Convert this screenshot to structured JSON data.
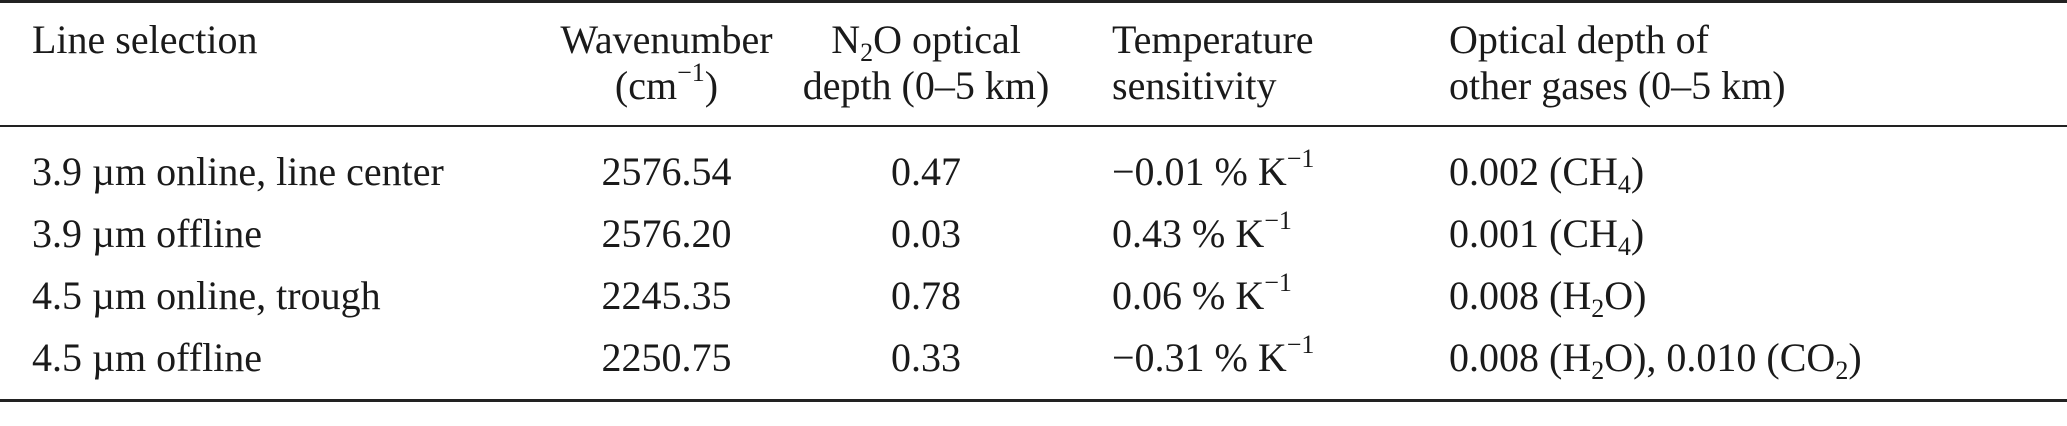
{
  "table": {
    "headers": {
      "line_selection": "Line selection",
      "wavenumber_l1": "Wavenumber",
      "wavenumber_l2_pre": "(cm",
      "wavenumber_l2_sup": "−1",
      "wavenumber_l2_post": ")",
      "n2o_l1_pre": "N",
      "n2o_l1_sub": "2",
      "n2o_l1_post": "O optical",
      "n2o_l2": "depth (0–5 km)",
      "temp_l1": "Temperature",
      "temp_l2": "sensitivity",
      "other_l1": "Optical depth of",
      "other_l2": "other gases (0–5 km)"
    },
    "rows": [
      {
        "line": "3.9 µm online, line center",
        "wavenumber": "2576.54",
        "n2o_depth": "0.47",
        "temp_pre": "−0.01 % K",
        "temp_sup": "−1",
        "other_pre": "0.002 (CH",
        "other_sub": "4",
        "other_post": ")"
      },
      {
        "line": "3.9 µm offline",
        "wavenumber": "2576.20",
        "n2o_depth": "0.03",
        "temp_pre": "0.43 % K",
        "temp_sup": "−1",
        "other_pre": "0.001 (CH",
        "other_sub": "4",
        "other_post": ")"
      },
      {
        "line": "4.5 µm online, trough",
        "wavenumber": "2245.35",
        "n2o_depth": "0.78",
        "temp_pre": "0.06 % K",
        "temp_sup": "−1",
        "other_pre": "0.008 (H",
        "other_sub": "2",
        "other_post": "O)"
      },
      {
        "line": "4.5 µm offline",
        "wavenumber": "2250.75",
        "n2o_depth": "0.33",
        "temp_pre": "−0.31 % K",
        "temp_sup": "−1",
        "other_pre": "0.008 (H",
        "other_sub": "2",
        "other_mid": "O), 0.010 (CO",
        "other_sub2": "2",
        "other_post": ")"
      }
    ]
  }
}
